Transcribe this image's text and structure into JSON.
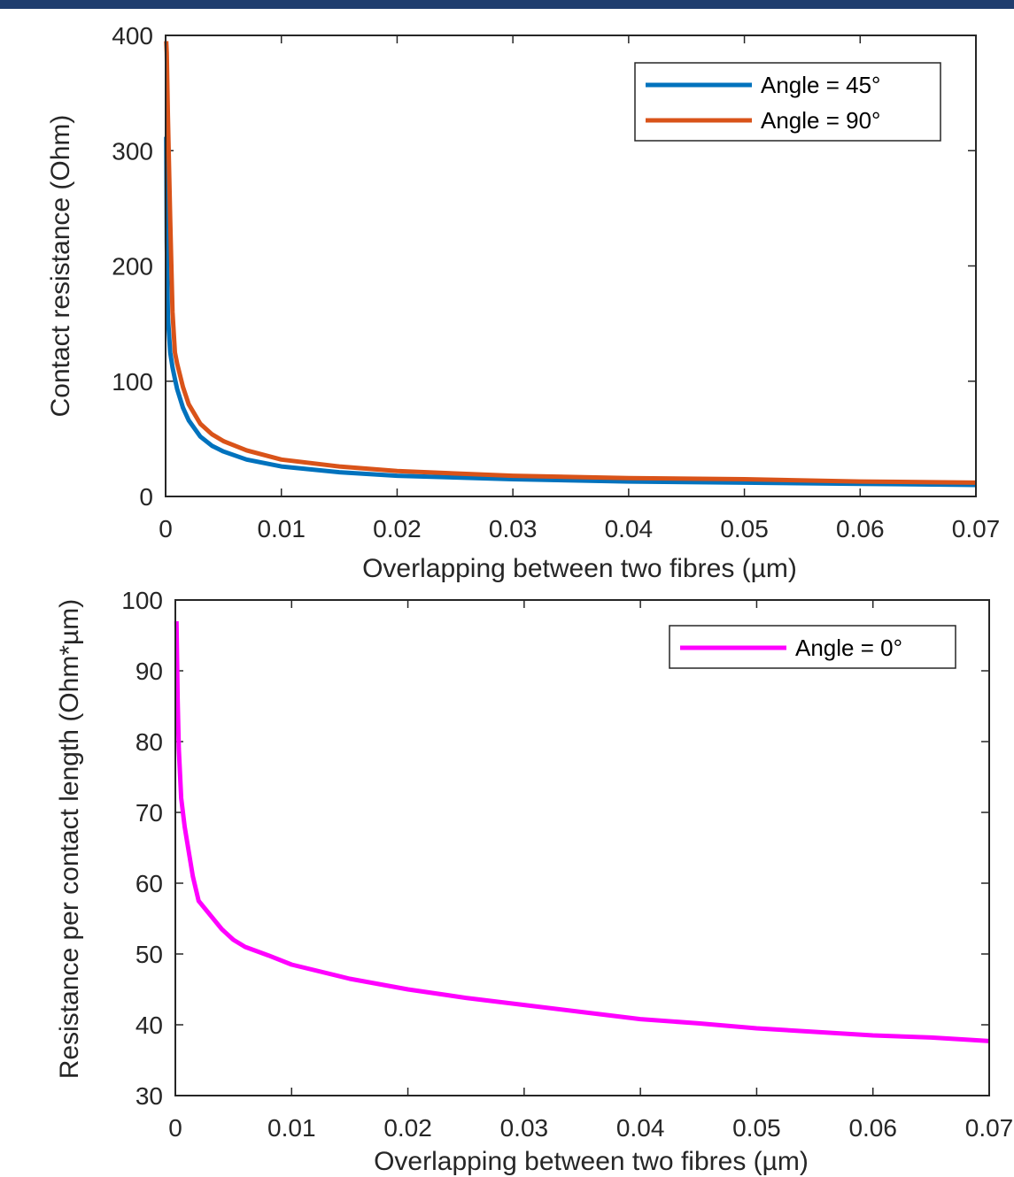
{
  "colors": {
    "top_bar": "#1f3d6e",
    "axis": "#262626",
    "series_45": "#0072bd",
    "series_90": "#d95319",
    "series_0": "#ff00ff"
  },
  "chart_data": [
    {
      "type": "line",
      "xlabel": "Overlapping between two fibres (µm)",
      "ylabel": "Contact resistance (Ohm)",
      "xlim": [
        0,
        0.07
      ],
      "ylim": [
        0,
        400
      ],
      "xticks": [
        "0",
        "0.01",
        "0.02",
        "0.03",
        "0.04",
        "0.05",
        "0.06",
        "0.07"
      ],
      "yticks": [
        "0",
        "100",
        "200",
        "300",
        "400"
      ],
      "grid": false,
      "legend_position": "top-right",
      "series": [
        {
          "name": "Angle = 45°",
          "color": "#0072bd",
          "x": [
            5e-05,
            0.0001,
            0.0002,
            0.0004,
            0.0006,
            0.0008,
            0.001,
            0.0015,
            0.002,
            0.003,
            0.004,
            0.005,
            0.007,
            0.01,
            0.015,
            0.02,
            0.03,
            0.04,
            0.05,
            0.06,
            0.07
          ],
          "y": [
            312,
            221,
            156,
            125,
            112,
            102,
            93,
            77,
            66,
            52,
            44,
            39,
            32,
            26,
            21,
            18,
            15,
            13,
            12,
            11,
            10
          ]
        },
        {
          "name": "Angle = 90°",
          "color": "#d95319",
          "x": [
            5e-05,
            0.0001,
            0.0002,
            0.0004,
            0.0006,
            0.0008,
            0.001,
            0.0015,
            0.002,
            0.003,
            0.004,
            0.005,
            0.007,
            0.01,
            0.015,
            0.02,
            0.03,
            0.04,
            0.05,
            0.06,
            0.07
          ],
          "y": [
            395,
            385,
            330,
            240,
            160,
            125,
            115,
            95,
            80,
            63,
            54,
            48,
            40,
            32,
            26,
            22,
            18,
            16,
            15,
            13,
            12
          ]
        }
      ]
    },
    {
      "type": "line",
      "xlabel": "Overlapping between two fibres (µm)",
      "ylabel": "Resistance per contact length (Ohm*µm)",
      "xlim": [
        0,
        0.07
      ],
      "ylim": [
        30,
        100
      ],
      "xticks": [
        "0",
        "0.01",
        "0.02",
        "0.03",
        "0.04",
        "0.05",
        "0.06",
        "0.07"
      ],
      "yticks": [
        "30",
        "40",
        "50",
        "60",
        "70",
        "80",
        "90",
        "100"
      ],
      "grid": false,
      "legend_position": "top-right",
      "series": [
        {
          "name": "Angle = 0°",
          "color": "#ff00ff",
          "x": [
            0.0001,
            0.0002,
            0.0003,
            0.0005,
            0.0008,
            0.001,
            0.0015,
            0.002,
            0.003,
            0.004,
            0.005,
            0.006,
            0.008,
            0.01,
            0.015,
            0.02,
            0.025,
            0.03,
            0.035,
            0.04,
            0.045,
            0.05,
            0.055,
            0.06,
            0.065,
            0.068,
            0.07
          ],
          "y": [
            97,
            86,
            79,
            72,
            68,
            66,
            61,
            57.5,
            55.5,
            53.5,
            52,
            51,
            49.8,
            48.5,
            46.5,
            45,
            43.8,
            42.8,
            41.8,
            40.8,
            40.2,
            39.5,
            39,
            38.5,
            38.2,
            37.9,
            37.7
          ]
        }
      ]
    }
  ]
}
